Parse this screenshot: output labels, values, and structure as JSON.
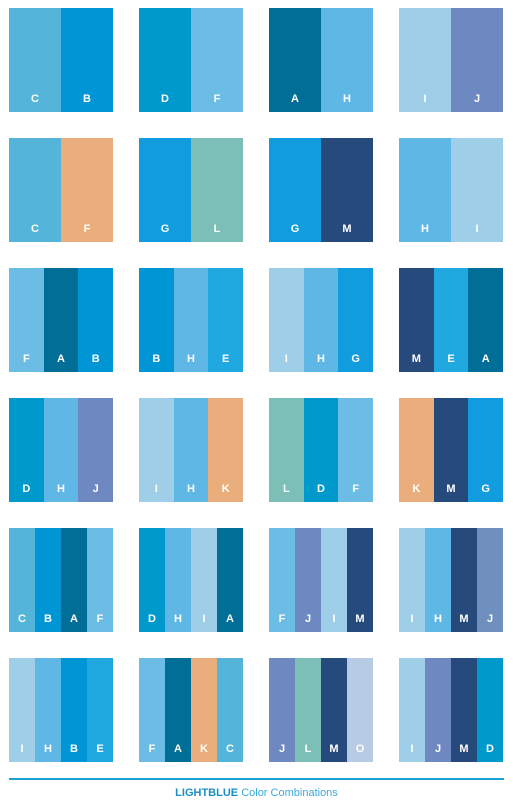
{
  "palette": {
    "A": "#006e96",
    "B": "#0096d6",
    "C": "#54b4d9",
    "D": "#0099cc",
    "E": "#20a8e0",
    "F": "#6cbde6",
    "G": "#129ce0",
    "H": "#5fb7e5",
    "I": "#9ecee8",
    "J": "#6e88c2",
    "K": "#eaae7c",
    "L": "#7bbfb6",
    "M": "#274a7c",
    "O": "#b8cbe4"
  },
  "groups": [
    [
      "C",
      "B"
    ],
    [
      "D",
      "F"
    ],
    [
      "A",
      "H"
    ],
    [
      "I",
      "J"
    ],
    [
      "C",
      "F"
    ],
    [
      "G",
      "L"
    ],
    [
      "G",
      "M"
    ],
    [
      "H",
      "I"
    ],
    [
      "F",
      "A",
      "B"
    ],
    [
      "B",
      "H",
      "E"
    ],
    [
      "I",
      "H",
      "G"
    ],
    [
      "M",
      "E",
      "A"
    ],
    [
      "D",
      "H",
      "J"
    ],
    [
      "I",
      "H",
      "K"
    ],
    [
      "L",
      "D",
      "F"
    ],
    [
      "K",
      "M",
      "G"
    ],
    [
      "C",
      "B",
      "A",
      "F"
    ],
    [
      "D",
      "H",
      "I",
      "A"
    ],
    [
      "F",
      "J",
      "I",
      "M"
    ],
    [
      "I",
      "H",
      "M",
      "J"
    ],
    [
      "I",
      "H",
      "B",
      "E"
    ],
    [
      "F",
      "A",
      "K",
      "C"
    ],
    [
      "J",
      "L",
      "M",
      "O"
    ],
    [
      "I",
      "J",
      "M",
      "D"
    ]
  ],
  "overrides": {
    "4-1": "#eaae7c",
    "19-3": "#6f8fbf",
    "20-0": "#9ecee8",
    "21-0": "#6cbde6"
  },
  "footer": {
    "title_strong": "LIGHTBLUE",
    "title_light_1": "Color",
    "title_strong_2": "Combinations"
  }
}
